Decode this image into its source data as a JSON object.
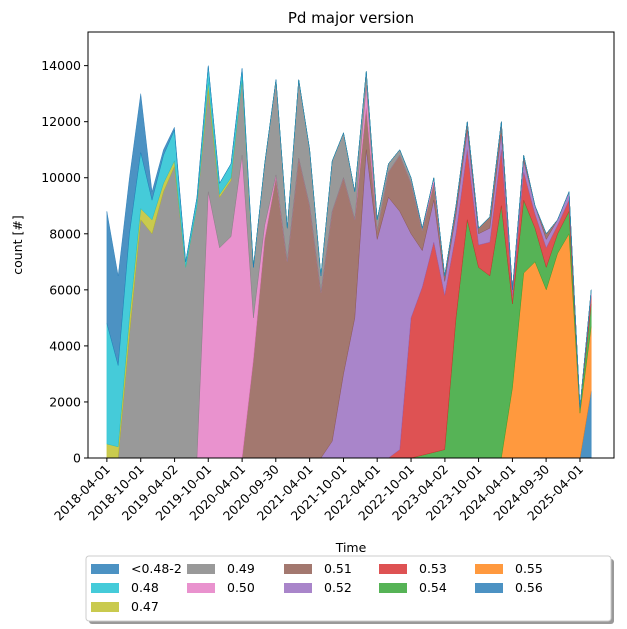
{
  "chart_data": {
    "type": "stacked_area",
    "title": "Pd major version",
    "xlabel": "Time",
    "ylabel": "count [#]",
    "x": [
      "2018-04-01",
      "2018-06-01",
      "2018-08-01",
      "2018-10-01",
      "2018-12-01",
      "2019-02-01",
      "2019-04-01",
      "2019-06-01",
      "2019-08-01",
      "2019-10-01",
      "2019-12-01",
      "2020-02-01",
      "2020-04-01",
      "2020-06-01",
      "2020-08-01",
      "2020-10-01",
      "2020-12-01",
      "2021-02-01",
      "2021-04-01",
      "2021-06-01",
      "2021-08-01",
      "2021-10-01",
      "2021-12-01",
      "2022-02-01",
      "2022-04-01",
      "2022-06-01",
      "2022-08-01",
      "2022-10-01",
      "2022-12-01",
      "2023-02-01",
      "2023-04-01",
      "2023-06-01",
      "2023-08-01",
      "2023-10-01",
      "2023-12-01",
      "2024-02-01",
      "2024-04-01",
      "2024-06-01",
      "2024-08-01",
      "2024-10-01",
      "2024-12-01",
      "2025-02-01",
      "2025-04-01",
      "2025-06-01"
    ],
    "series": [
      {
        "name": "<0.48-2",
        "color": "#1f77b4",
        "values": [
          4000,
          3200,
          2000,
          2100,
          300,
          200,
          100,
          0,
          0,
          0,
          0,
          0,
          0,
          0,
          0,
          0,
          0,
          0,
          0,
          0,
          0,
          0,
          0,
          0,
          0,
          0,
          0,
          0,
          0,
          0,
          0,
          0,
          0,
          0,
          0,
          0,
          0,
          0,
          0,
          0,
          0,
          0,
          0,
          0
        ]
      },
      {
        "name": "0.48",
        "color": "#17becf",
        "values": [
          4300,
          2900,
          3000,
          2000,
          700,
          1000,
          1100,
          200,
          300,
          600,
          400,
          500,
          400,
          0,
          0,
          0,
          0,
          0,
          0,
          0,
          0,
          0,
          0,
          0,
          0,
          0,
          0,
          0,
          0,
          0,
          0,
          0,
          0,
          0,
          0,
          0,
          0,
          0,
          0,
          0,
          0,
          0,
          0,
          0
        ]
      },
      {
        "name": "0.47",
        "color": "#bcbd22",
        "values": [
          500,
          400,
          600,
          400,
          500,
          300,
          200,
          0,
          0,
          300,
          100,
          100,
          0,
          0,
          0,
          0,
          0,
          0,
          0,
          0,
          0,
          0,
          0,
          0,
          0,
          0,
          0,
          0,
          0,
          0,
          0,
          0,
          0,
          0,
          0,
          0,
          0,
          0,
          0,
          0,
          0,
          0,
          0,
          0
        ]
      },
      {
        "name": "0.49",
        "color": "#7f7f7f",
        "values": [
          0,
          0,
          4400,
          8500,
          8000,
          9500,
          10400,
          6800,
          9000,
          3600,
          1800,
          2000,
          2700,
          1800,
          2200,
          3400,
          1200,
          2800,
          2000,
          600,
          1800,
          1600,
          1000,
          500,
          400,
          300,
          200,
          200,
          100,
          0,
          0,
          0,
          0,
          0,
          0,
          0,
          0,
          0,
          0,
          0,
          0,
          0,
          0,
          0
        ]
      },
      {
        "name": "0.50",
        "color": "#e377c2",
        "values": [
          0,
          0,
          0,
          0,
          0,
          0,
          0,
          0,
          0,
          9500,
          7500,
          7900,
          10800,
          1500,
          500,
          100,
          0,
          0,
          0,
          0,
          0,
          0,
          0,
          800,
          0,
          0,
          0,
          0,
          0,
          200,
          0,
          0,
          0,
          0,
          0,
          0,
          0,
          0,
          0,
          0,
          0,
          0,
          0,
          0
        ]
      },
      {
        "name": "0.51",
        "color": "#8c564b",
        "values": [
          0,
          0,
          0,
          0,
          0,
          0,
          0,
          0,
          0,
          0,
          0,
          0,
          0,
          3500,
          7800,
          10000,
          7000,
          10700,
          9000,
          5900,
          8200,
          7000,
          3500,
          1500,
          300,
          900,
          2000,
          1800,
          700,
          600,
          200,
          300,
          300,
          200,
          400,
          400,
          0,
          200,
          0,
          200,
          0,
          0,
          0,
          0
        ]
      },
      {
        "name": "0.52",
        "color": "#9467bd",
        "values": [
          0,
          0,
          0,
          0,
          0,
          0,
          0,
          0,
          0,
          0,
          0,
          0,
          0,
          0,
          0,
          0,
          0,
          0,
          0,
          0,
          600,
          3000,
          5000,
          11000,
          7800,
          9300,
          8500,
          3000,
          1300,
          1500,
          500,
          700,
          700,
          400,
          500,
          600,
          200,
          400,
          300,
          300,
          200,
          300,
          0,
          200
        ]
      },
      {
        "name": "0.53",
        "color": "#d62728",
        "values": [
          0,
          0,
          0,
          0,
          0,
          0,
          0,
          0,
          0,
          0,
          0,
          0,
          0,
          0,
          0,
          0,
          0,
          0,
          0,
          0,
          0,
          0,
          0,
          0,
          0,
          0,
          300,
          5000,
          6000,
          7500,
          5500,
          3000,
          2500,
          800,
          1200,
          2000,
          300,
          1000,
          500,
          700,
          300,
          400,
          0,
          300
        ]
      },
      {
        "name": "0.54",
        "color": "#2ca02c",
        "values": [
          0,
          0,
          0,
          0,
          0,
          0,
          0,
          0,
          0,
          0,
          0,
          0,
          0,
          0,
          0,
          0,
          0,
          0,
          0,
          0,
          0,
          0,
          0,
          0,
          0,
          0,
          0,
          0,
          100,
          200,
          300,
          5000,
          8500,
          6800,
          6500,
          9000,
          3000,
          2600,
          1200,
          800,
          700,
          800,
          200,
          800
        ]
      },
      {
        "name": "0.55",
        "color": "#ff7f0e",
        "values": [
          0,
          0,
          0,
          0,
          0,
          0,
          0,
          0,
          0,
          0,
          0,
          0,
          0,
          0,
          0,
          0,
          0,
          0,
          0,
          0,
          0,
          0,
          0,
          0,
          0,
          0,
          0,
          0,
          0,
          0,
          0,
          0,
          0,
          0,
          0,
          0,
          2500,
          6600,
          7000,
          6000,
          7300,
          8000,
          1600,
          2300
        ]
      },
      {
        "name": "0.56",
        "color": "#1f77b4",
        "values": [
          0,
          0,
          0,
          0,
          0,
          0,
          0,
          0,
          0,
          0,
          0,
          0,
          0,
          0,
          0,
          0,
          0,
          0,
          0,
          0,
          0,
          0,
          0,
          0,
          0,
          0,
          0,
          0,
          0,
          0,
          0,
          0,
          0,
          0,
          0,
          0,
          0,
          0,
          0,
          0,
          0,
          0,
          0,
          2400
        ]
      }
    ],
    "alpha": 0.8,
    "stack_order": "reverse",
    "xlim": [
      "2017-12-20",
      "2025-10-02"
    ],
    "xticks": [
      "2018-04-01",
      "2018-10-01",
      "2019-04-02",
      "2019-10-01",
      "2020-04-01",
      "2020-09-30",
      "2021-04-01",
      "2021-10-01",
      "2022-04-01",
      "2022-10-01",
      "2023-04-02",
      "2023-10-01",
      "2024-04-01",
      "2024-09-30",
      "2025-04-01"
    ],
    "ylim": [
      0,
      15200
    ],
    "yticks": [
      0,
      2000,
      4000,
      6000,
      8000,
      10000,
      12000,
      14000
    ],
    "grid": false,
    "legend": "below",
    "legend_columns": 5
  }
}
